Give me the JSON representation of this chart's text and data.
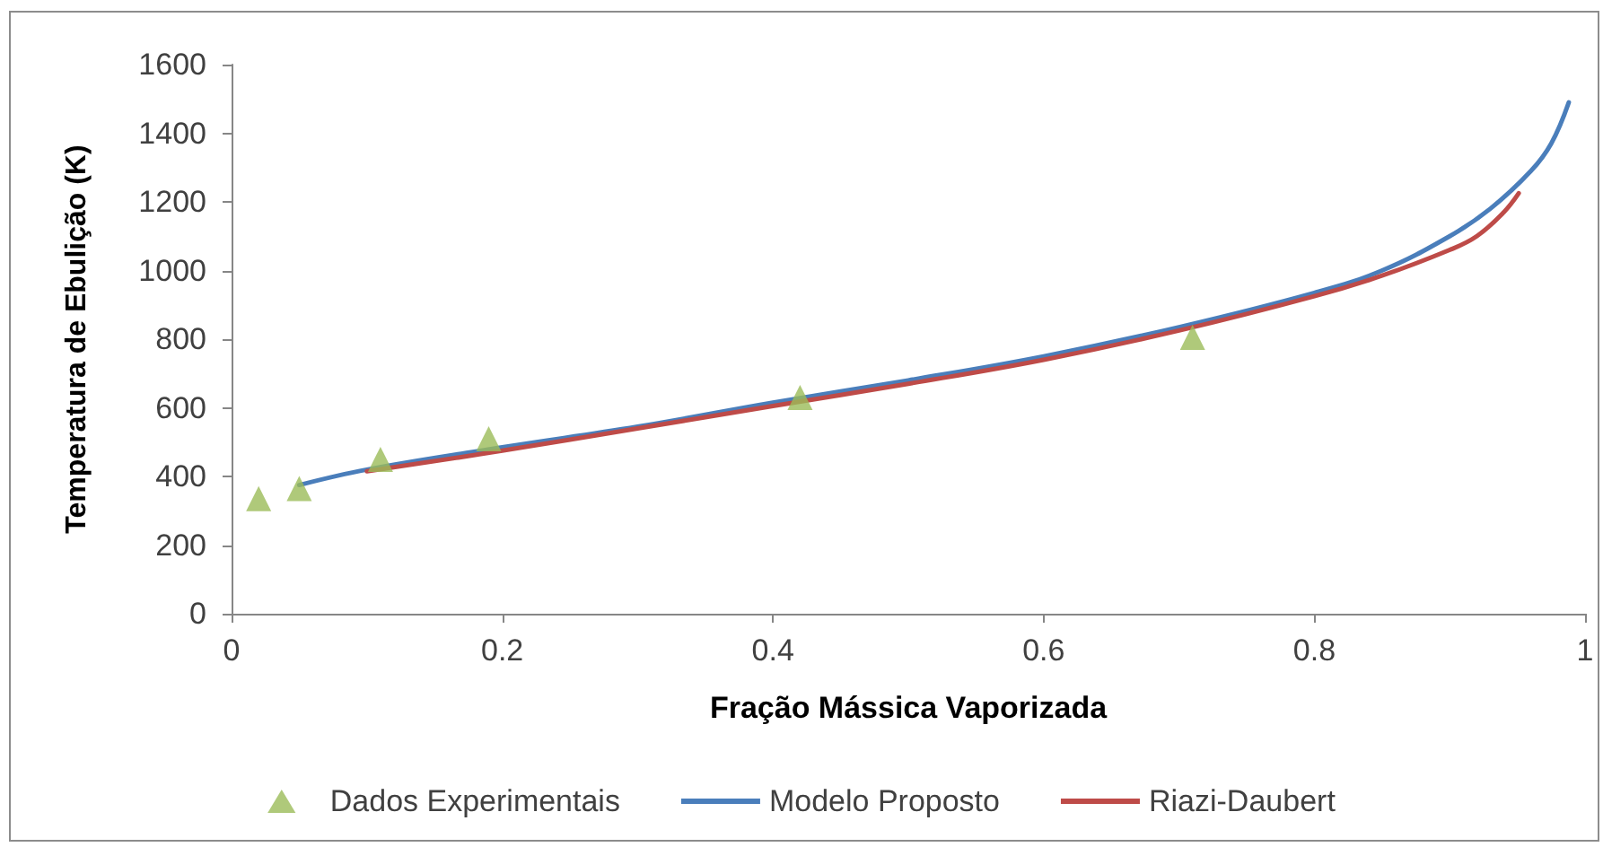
{
  "chart_data": {
    "type": "line",
    "xlabel": "Fração Mássica Vaporizada",
    "ylabel": "Temperatura de Ebulição (K)",
    "xlim": [
      0,
      1
    ],
    "xticks": [
      0,
      0.2,
      0.4,
      0.6,
      0.8,
      1
    ],
    "ylim": [
      0,
      1600
    ],
    "yticks": [
      0,
      200,
      400,
      600,
      800,
      1000,
      1200,
      1400,
      1600
    ],
    "grid": false,
    "legend": "bottom",
    "series": [
      {
        "name": "Dados Experimentais",
        "type": "scatter",
        "marker": "triangle",
        "color": "#9bbb59",
        "x": [
          0.02,
          0.05,
          0.11,
          0.19,
          0.42,
          0.71
        ],
        "values": [
          335,
          365,
          450,
          510,
          630,
          805
        ]
      },
      {
        "name": "Modelo Proposto",
        "type": "line",
        "marker": "none",
        "color": "#4a7ebb",
        "x": [
          0.05,
          0.1,
          0.2,
          0.3,
          0.4,
          0.5,
          0.6,
          0.7,
          0.8,
          0.85,
          0.9,
          0.93,
          0.96,
          0.975,
          0.988
        ],
        "values": [
          375,
          420,
          485,
          545,
          615,
          680,
          750,
          835,
          935,
          1000,
          1100,
          1180,
          1290,
          1370,
          1490
        ]
      },
      {
        "name": "Riazi-Daubert",
        "type": "line",
        "marker": "none",
        "color": "#be4b48",
        "x": [
          0.1,
          0.2,
          0.3,
          0.4,
          0.5,
          0.6,
          0.7,
          0.8,
          0.85,
          0.9,
          0.92,
          0.94,
          0.951
        ],
        "values": [
          415,
          475,
          540,
          605,
          670,
          740,
          825,
          925,
          985,
          1060,
          1100,
          1170,
          1225
        ]
      }
    ]
  }
}
